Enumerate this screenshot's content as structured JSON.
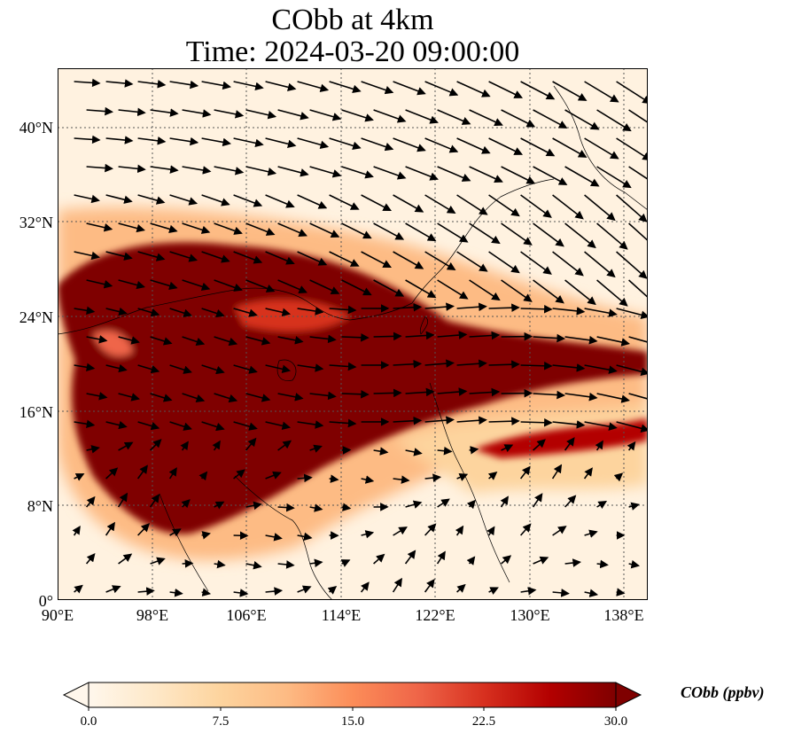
{
  "title": {
    "line1": "CObb at 4km",
    "line2": "Time: 2024-03-20 09:00:00"
  },
  "map": {
    "lon_range": [
      90,
      140
    ],
    "lat_range": [
      0,
      45
    ],
    "lat_labels": [
      "0°",
      "8°N",
      "16°N",
      "24°N",
      "32°N",
      "40°N"
    ],
    "lat_values": [
      0,
      8,
      16,
      24,
      32,
      40
    ],
    "lon_labels": [
      "90°E",
      "98°E",
      "106°E",
      "114°E",
      "122°E",
      "130°E",
      "138°E"
    ],
    "lon_values": [
      90,
      98,
      106,
      114,
      122,
      130,
      138
    ],
    "colormap": "OrRd",
    "colors": [
      "#fff7ec",
      "#fee8c8",
      "#fdd49e",
      "#fdbb84",
      "#fc8d59",
      "#ef6548",
      "#d7301f",
      "#b30000",
      "#7f0000"
    ]
  },
  "colorbar": {
    "label": "CObb (ppbv)",
    "ticks": [
      "0.0",
      "7.5",
      "15.0",
      "22.5",
      "30.0"
    ],
    "tick_values": [
      0,
      7.5,
      15,
      22.5,
      30
    ],
    "range": [
      0,
      30
    ],
    "extend": "both"
  }
}
